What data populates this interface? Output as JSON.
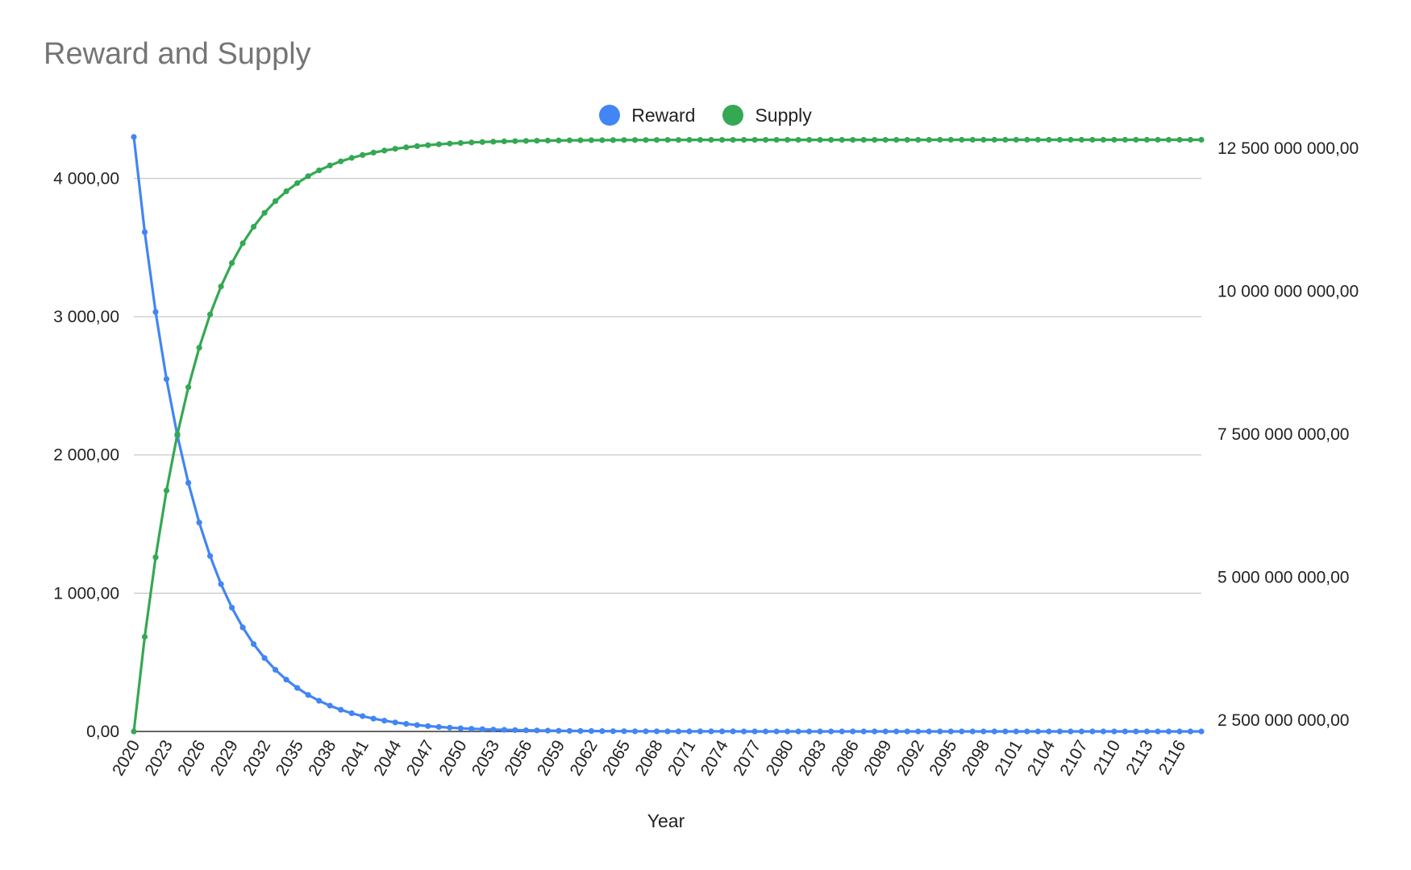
{
  "chart_data": {
    "type": "line",
    "title": "Reward and Supply",
    "xlabel": "Year",
    "x_ticks": [
      "2020",
      "2023",
      "2026",
      "2029",
      "2032",
      "2035",
      "2038",
      "2041",
      "2044",
      "2047",
      "2050",
      "2053",
      "2056",
      "2059",
      "2062",
      "2065",
      "2068",
      "2071",
      "2074",
      "2077",
      "2080",
      "2083",
      "2086",
      "2089",
      "2092",
      "2095",
      "2098",
      "2101",
      "2104",
      "2107",
      "2110",
      "2113",
      "2116"
    ],
    "x_range": [
      2020,
      2118
    ],
    "legend_position": "top",
    "grid": true,
    "y_left": {
      "ticks": [
        "0,00",
        "1 000,00",
        "2 000,00",
        "3 000,00",
        "4 000,00"
      ],
      "tick_values": [
        0,
        1000,
        2000,
        3000,
        4000
      ],
      "range": [
        0,
        4300
      ]
    },
    "y_right": {
      "ticks": [
        "2 500 000 000,00",
        "5 000 000 000,00",
        "7 500 000 000,00",
        "10 000 000 000,00",
        "12 500 000 000,00"
      ],
      "tick_values": [
        2500000000,
        5000000000,
        7500000000,
        10000000000,
        12500000000
      ],
      "range": [
        2300000000,
        12700000000
      ]
    },
    "series": [
      {
        "name": "Reward",
        "color": "#4285f4",
        "axis": "left",
        "model": "exponential-decay",
        "start_value": 4300,
        "annual_factor": 0.84,
        "anchor_points": [
          {
            "x": 2020,
            "y": 4300
          },
          {
            "x": 2021,
            "y": 3600
          },
          {
            "x": 2022,
            "y": 3010
          },
          {
            "x": 2023,
            "y": 2520
          },
          {
            "x": 2024,
            "y": 2100
          },
          {
            "x": 2025,
            "y": 1760
          },
          {
            "x": 2026,
            "y": 1470
          },
          {
            "x": 2027,
            "y": 1230
          },
          {
            "x": 2028,
            "y": 1030
          },
          {
            "x": 2029,
            "y": 860
          },
          {
            "x": 2030,
            "y": 720
          },
          {
            "x": 2031,
            "y": 600
          },
          {
            "x": 2032,
            "y": 500
          },
          {
            "x": 2035,
            "y": 300
          },
          {
            "x": 2040,
            "y": 120
          },
          {
            "x": 2045,
            "y": 50
          },
          {
            "x": 2050,
            "y": 20
          },
          {
            "x": 2118,
            "y": 0
          }
        ]
      },
      {
        "name": "Supply",
        "color": "#34a853",
        "axis": "right",
        "model": "saturating-growth",
        "start_value": 2300000000,
        "limit_value": 12650000000,
        "annual_factor": 0.84,
        "anchor_points": [
          {
            "x": 2020,
            "y": 2300000000
          },
          {
            "x": 2021,
            "y": 3800000000
          },
          {
            "x": 2022,
            "y": 5250000000
          },
          {
            "x": 2023,
            "y": 6450000000
          },
          {
            "x": 2024,
            "y": 7500000000
          },
          {
            "x": 2025,
            "y": 8350000000
          },
          {
            "x": 2026,
            "y": 9050000000
          },
          {
            "x": 2027,
            "y": 9650000000
          },
          {
            "x": 2028,
            "y": 10150000000
          },
          {
            "x": 2029,
            "y": 10550000000
          },
          {
            "x": 2030,
            "y": 10900000000
          },
          {
            "x": 2035,
            "y": 11950000000
          },
          {
            "x": 2040,
            "y": 12350000000
          },
          {
            "x": 2045,
            "y": 12550000000
          },
          {
            "x": 2050,
            "y": 12620000000
          },
          {
            "x": 2118,
            "y": 12650000000
          }
        ]
      }
    ]
  }
}
